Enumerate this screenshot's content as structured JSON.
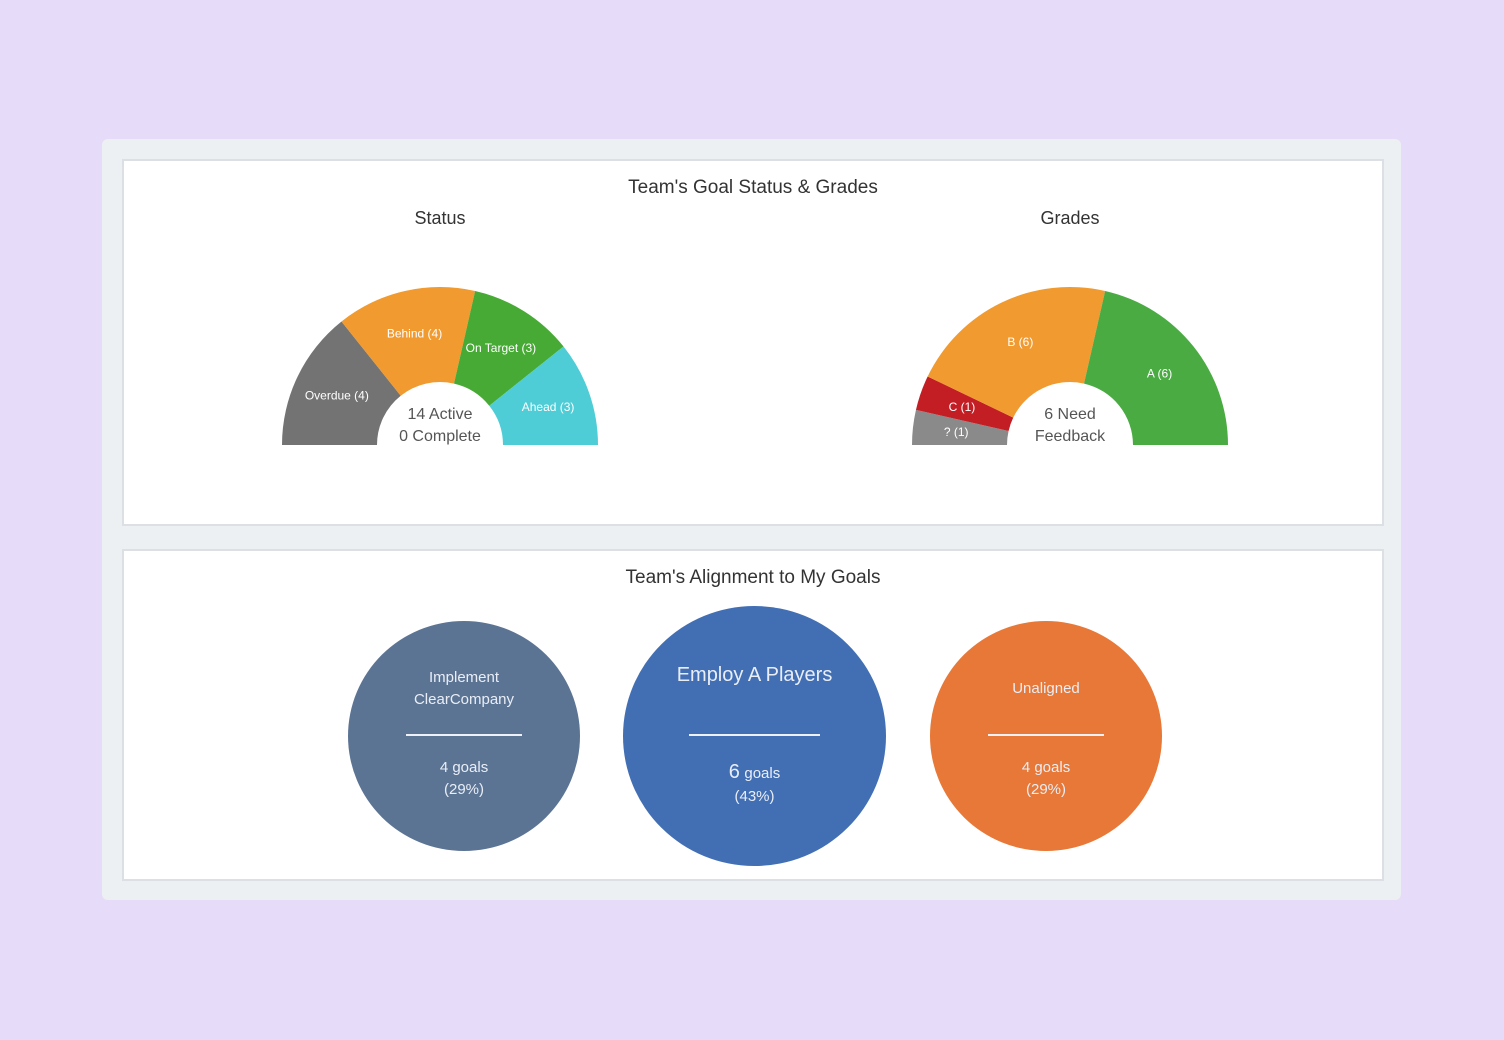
{
  "titles": {
    "status_panel": "Team's Goal Status & Grades",
    "alignment_panel": "Team's Alignment to My Goals"
  },
  "chart_data": [
    {
      "type": "pie",
      "subtitle": "Status",
      "shape": "semicircle-donut",
      "slices": [
        {
          "label": "Overdue (4)",
          "value": 4,
          "color": "#737373"
        },
        {
          "label": "Behind (4)",
          "value": 4,
          "color": "#f09a30"
        },
        {
          "label": "On Target (3)",
          "value": 3,
          "color": "#47aa34"
        },
        {
          "label": "Ahead (3)",
          "value": 3,
          "color": "#4ecdd6"
        }
      ],
      "center_lines": [
        "14 Active",
        "0 Complete"
      ]
    },
    {
      "type": "pie",
      "subtitle": "Grades",
      "shape": "semicircle-donut",
      "slices": [
        {
          "label": "? (1)",
          "value": 1,
          "color": "#8a8a8a"
        },
        {
          "label": "C (1)",
          "value": 1,
          "color": "#c41e25"
        },
        {
          "label": "B (6)",
          "value": 6,
          "color": "#f09a30"
        },
        {
          "label": "A (6)",
          "value": 6,
          "color": "#4aab43"
        }
      ],
      "center_lines": [
        "6 Need",
        "Feedback"
      ]
    },
    {
      "type": "bubble",
      "items": [
        {
          "label": "Implement ClearCompany",
          "count": "4",
          "unit": "goals",
          "percent": "(29%)",
          "value": 4,
          "color": "#5c7494"
        },
        {
          "label": "Employ A Players",
          "count": "6",
          "unit": "goals",
          "percent": "(43%)",
          "value": 6,
          "color": "#426fb4"
        },
        {
          "label": "Unaligned",
          "count": "4",
          "unit": "goals",
          "percent": "(29%)",
          "value": 4,
          "color": "#e87837"
        }
      ]
    }
  ]
}
